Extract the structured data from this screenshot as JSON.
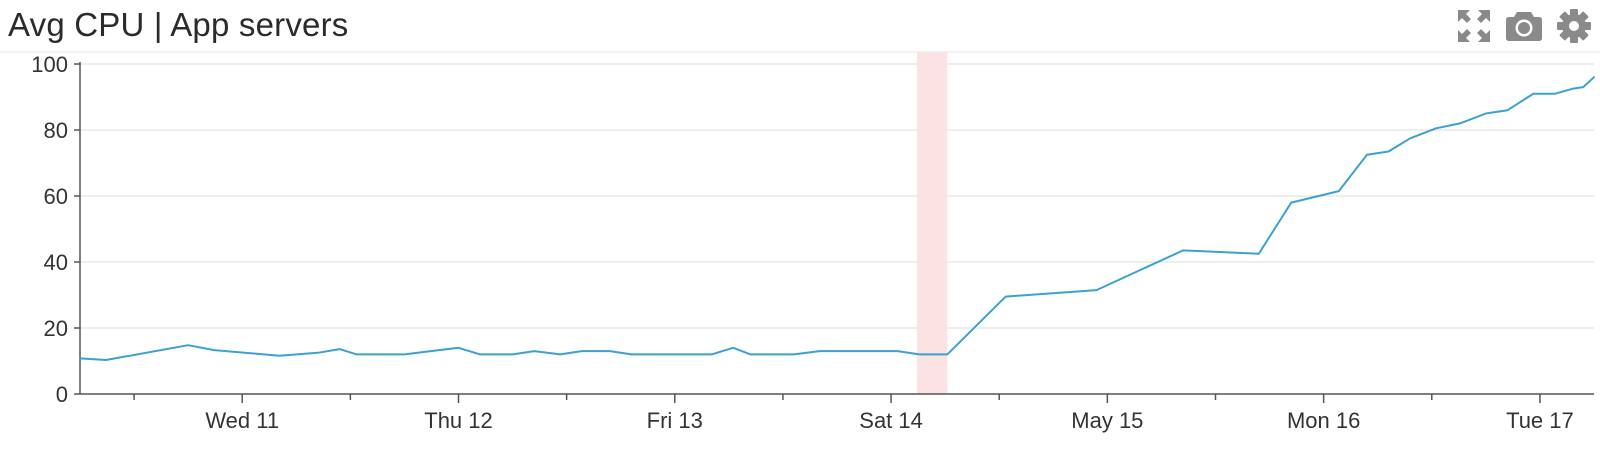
{
  "header": {
    "title": "Avg CPU | App servers",
    "tools": [
      {
        "name": "fullscreen",
        "icon": "expand-arrows-icon"
      },
      {
        "name": "snapshot",
        "icon": "camera-icon"
      },
      {
        "name": "settings",
        "icon": "gear-icon"
      }
    ]
  },
  "colors": {
    "line": "#3aa1d0",
    "highlight": "#fbe3e3",
    "grid": "#e9e9e9",
    "axis": "#555555",
    "icon": "#8a8a8a"
  },
  "chart_data": {
    "type": "line",
    "title": "Avg CPU | App servers",
    "xlabel": "",
    "ylabel": "",
    "ylim": [
      0,
      100
    ],
    "yticks": [
      0,
      20,
      40,
      60,
      80,
      100
    ],
    "xlim": [
      0,
      7
    ],
    "xticks": [
      {
        "x": 0.75,
        "label": "Wed 11"
      },
      {
        "x": 1.75,
        "label": "Thu 12"
      },
      {
        "x": 2.75,
        "label": "Fri 13"
      },
      {
        "x": 3.75,
        "label": "Sat 14"
      },
      {
        "x": 4.75,
        "label": "May 15"
      },
      {
        "x": 5.75,
        "label": "Mon 16"
      },
      {
        "x": 6.75,
        "label": "Tue 17"
      }
    ],
    "minor_xticks": [
      0.25,
      1.25,
      2.25,
      3.25,
      4.25,
      5.25,
      6.25
    ],
    "grid": true,
    "highlight_band": {
      "from": 3.87,
      "to": 4.01
    },
    "series": [
      {
        "values": [
          {
            "x": 0.0,
            "y": 10.8
          },
          {
            "x": 0.12,
            "y": 10.3
          },
          {
            "x": 0.5,
            "y": 14.8
          },
          {
            "x": 0.62,
            "y": 13.3
          },
          {
            "x": 0.92,
            "y": 11.6
          },
          {
            "x": 1.1,
            "y": 12.5
          },
          {
            "x": 1.2,
            "y": 13.6
          },
          {
            "x": 1.28,
            "y": 12.0
          },
          {
            "x": 1.5,
            "y": 12.0
          },
          {
            "x": 1.75,
            "y": 14.0
          },
          {
            "x": 1.85,
            "y": 12.0
          },
          {
            "x": 2.0,
            "y": 12.0
          },
          {
            "x": 2.1,
            "y": 13.0
          },
          {
            "x": 2.22,
            "y": 12.0
          },
          {
            "x": 2.32,
            "y": 13.0
          },
          {
            "x": 2.45,
            "y": 13.0
          },
          {
            "x": 2.55,
            "y": 12.0
          },
          {
            "x": 2.8,
            "y": 12.0
          },
          {
            "x": 2.92,
            "y": 12.0
          },
          {
            "x": 3.02,
            "y": 14.0
          },
          {
            "x": 3.1,
            "y": 12.0
          },
          {
            "x": 3.3,
            "y": 12.0
          },
          {
            "x": 3.42,
            "y": 13.0
          },
          {
            "x": 3.78,
            "y": 13.0
          },
          {
            "x": 3.88,
            "y": 12.0
          },
          {
            "x": 4.01,
            "y": 12.0
          },
          {
            "x": 4.28,
            "y": 29.5
          },
          {
            "x": 4.7,
            "y": 31.5
          },
          {
            "x": 5.1,
            "y": 43.5
          },
          {
            "x": 5.45,
            "y": 42.5
          },
          {
            "x": 5.6,
            "y": 58.0
          },
          {
            "x": 5.82,
            "y": 61.5
          },
          {
            "x": 5.95,
            "y": 72.5
          },
          {
            "x": 6.05,
            "y": 73.5
          },
          {
            "x": 6.15,
            "y": 77.5
          },
          {
            "x": 6.27,
            "y": 80.5
          },
          {
            "x": 6.38,
            "y": 82.0
          },
          {
            "x": 6.5,
            "y": 85.0
          },
          {
            "x": 6.6,
            "y": 86.0
          },
          {
            "x": 6.72,
            "y": 91.0
          },
          {
            "x": 6.82,
            "y": 91.0
          },
          {
            "x": 6.9,
            "y": 92.5
          },
          {
            "x": 6.95,
            "y": 93.0
          },
          {
            "x": 7.0,
            "y": 96.0
          }
        ]
      }
    ]
  }
}
